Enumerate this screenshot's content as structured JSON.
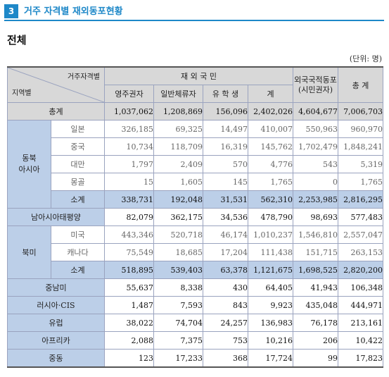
{
  "section": {
    "number": "3",
    "title": "거주 자격별 재외동포현황"
  },
  "subtitle": "전체",
  "unit": "(단위: 명)",
  "table": {
    "corner_top": "거주자격별",
    "corner_bottom": "지역별",
    "group_korean": "재 외 국 민",
    "col_permanent": "영주권자",
    "col_general": "일반체류자",
    "col_student": "유 학 생",
    "col_sum": "계",
    "col_foreign": "외국국적동포\n(시민권자)",
    "col_total": "총 계",
    "total": {
      "label": "총계",
      "values": [
        "1,037,062",
        "1,208,869",
        "156,096",
        "2,402,026",
        "4,604,677",
        "7,006,703"
      ]
    },
    "northeast_asia": {
      "label": "동북\n아시아",
      "rows": [
        {
          "label": "일본",
          "values": [
            "326,185",
            "69,325",
            "14,497",
            "410,007",
            "550,963",
            "960,970"
          ]
        },
        {
          "label": "중국",
          "values": [
            "10,734",
            "118,709",
            "16,319",
            "145,762",
            "1,702,479",
            "1,848,241"
          ]
        },
        {
          "label": "대만",
          "values": [
            "1,797",
            "2,409",
            "570",
            "4,776",
            "543",
            "5,319"
          ]
        },
        {
          "label": "몽골",
          "values": [
            "15",
            "1,605",
            "145",
            "1,765",
            "0",
            "1,765"
          ]
        }
      ],
      "subtotal": {
        "label": "소계",
        "values": [
          "338,731",
          "192,048",
          "31,531",
          "562,310",
          "2,253,985",
          "2,816,295"
        ]
      }
    },
    "south_asia_pacific": {
      "label": "남아시아태평양",
      "values": [
        "82,079",
        "362,175",
        "34,536",
        "478,790",
        "98,693",
        "577,483"
      ]
    },
    "north_america": {
      "label": "북미",
      "rows": [
        {
          "label": "미국",
          "values": [
            "443,346",
            "520,718",
            "46,174",
            "1,010,237",
            "1,546,810",
            "2,557,047"
          ]
        },
        {
          "label": "캐나다",
          "values": [
            "75,549",
            "18,685",
            "17,204",
            "111,438",
            "151,715",
            "263,153"
          ]
        }
      ],
      "subtotal": {
        "label": "소계",
        "values": [
          "518,895",
          "539,403",
          "63,378",
          "1,121,675",
          "1,698,525",
          "2,820,200"
        ]
      }
    },
    "other_regions": [
      {
        "label": "중남미",
        "values": [
          "55,637",
          "8,338",
          "430",
          "64,405",
          "41,943",
          "106,348"
        ]
      },
      {
        "label": "러시아·CIS",
        "values": [
          "1,487",
          "7,593",
          "843",
          "9,923",
          "435,048",
          "444,971"
        ]
      },
      {
        "label": "유럽",
        "values": [
          "38,022",
          "74,704",
          "24,257",
          "136,983",
          "76,178",
          "213,161"
        ]
      },
      {
        "label": "아프리카",
        "values": [
          "2,088",
          "7,375",
          "753",
          "10,216",
          "206",
          "10,422"
        ]
      },
      {
        "label": "중동",
        "values": [
          "123",
          "17,233",
          "368",
          "17,724",
          "99",
          "17,823"
        ]
      }
    ]
  },
  "colors": {
    "accent": "#1e88c8",
    "region_fill": "#bccfe8",
    "header_fill": "#d8d8d8"
  }
}
